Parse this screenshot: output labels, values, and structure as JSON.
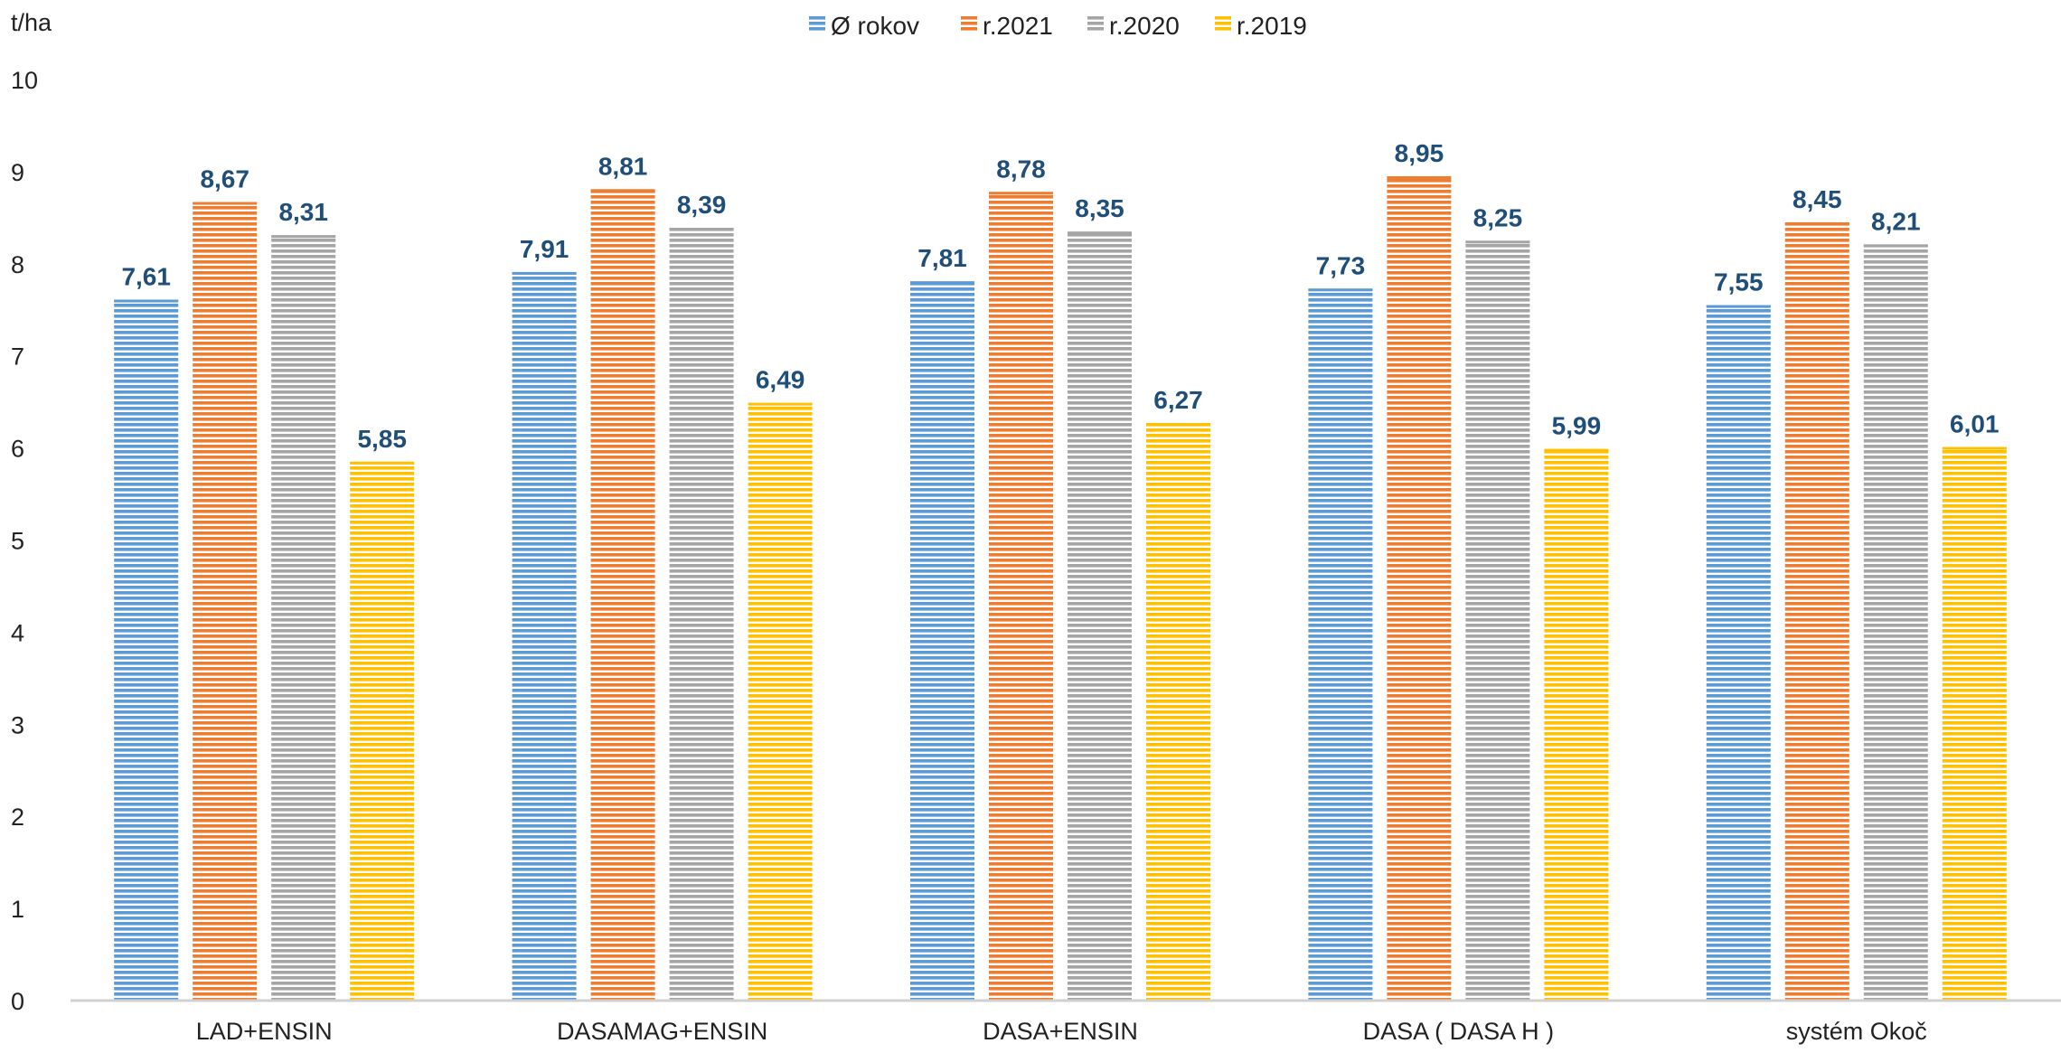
{
  "chart_data": {
    "type": "bar",
    "ylabel": "t/ha",
    "ylim": [
      0,
      10
    ],
    "yticks": [
      0,
      1,
      2,
      3,
      4,
      5,
      6,
      7,
      8,
      9,
      10
    ],
    "grid": false,
    "legend_position": "top-center",
    "categories": [
      "LAD+ENSIN",
      "DASAMAG+ENSIN",
      "DASA+ENSIN",
      "DASA ( DASA H )",
      "systém Okoč"
    ],
    "series": [
      {
        "name": "Ø rokov",
        "color": "#5b9bd5",
        "values": [
          7.61,
          7.91,
          7.81,
          7.73,
          7.55
        ],
        "labels": [
          "7,61",
          "7,91",
          "7,81",
          "7,73",
          "7,55"
        ]
      },
      {
        "name": "r.2021",
        "color": "#ed7d31",
        "values": [
          8.67,
          8.81,
          8.78,
          8.95,
          8.45
        ],
        "labels": [
          "8,67",
          "8,81",
          "8,78",
          "8,95",
          "8,45"
        ]
      },
      {
        "name": "r.2020",
        "color": "#a5a5a5",
        "values": [
          8.31,
          8.39,
          8.35,
          8.25,
          8.21
        ],
        "labels": [
          "8,31",
          "8,39",
          "8,35",
          "8,25",
          "8,21"
        ]
      },
      {
        "name": "r.2019",
        "color": "#ffc000",
        "values": [
          5.85,
          6.49,
          6.27,
          5.99,
          6.01
        ],
        "labels": [
          "5,85",
          "6,49",
          "6,27",
          "5,99",
          "6,01"
        ]
      }
    ]
  }
}
